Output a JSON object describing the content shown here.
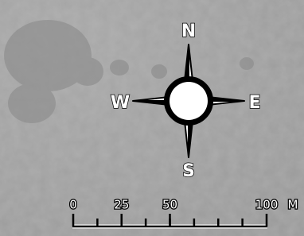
{
  "compass": {
    "north": "N",
    "east": "E",
    "south": "S",
    "west": "W"
  },
  "scale_bar": {
    "ticks": [
      0,
      25,
      50,
      100
    ],
    "unit": "M"
  }
}
